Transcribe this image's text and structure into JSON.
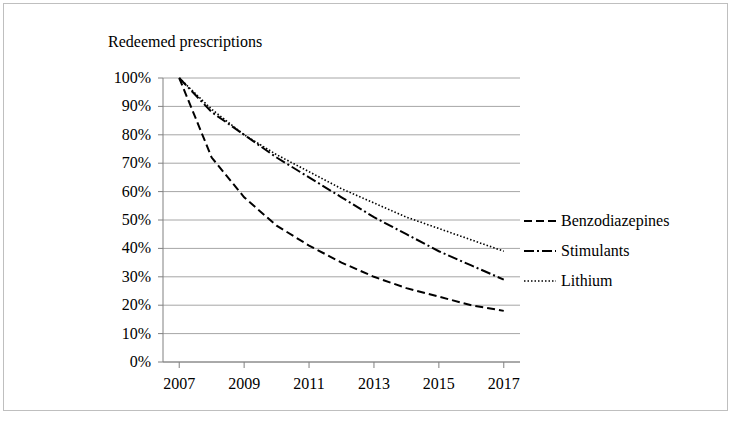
{
  "chart_data": {
    "type": "line",
    "y_label": "Redeemed prescriptions",
    "x": [
      2007,
      2008,
      2009,
      2010,
      2011,
      2012,
      2013,
      2014,
      2015,
      2016,
      2017
    ],
    "series": [
      {
        "name": "Benzodiazepines",
        "color": "#000000",
        "line_style": "dashed",
        "values": [
          100,
          72,
          58,
          48,
          41,
          35,
          30,
          26,
          23,
          20,
          18
        ]
      },
      {
        "name": "Stimulants",
        "color": "#000000",
        "line_style": "dashdot",
        "values": [
          100,
          88,
          80,
          72,
          65,
          58,
          51,
          45,
          39,
          34,
          29
        ]
      },
      {
        "name": "Lithium",
        "color": "#000000",
        "line_style": "dotted",
        "values": [
          100,
          89,
          80,
          73,
          67,
          61,
          56,
          51,
          47,
          43,
          39
        ]
      }
    ],
    "xlim": [
      2006.5,
      2017.5
    ],
    "xticks": [
      2007,
      2009,
      2011,
      2013,
      2015,
      2017
    ],
    "ylim": [
      0,
      100
    ],
    "yticks": [
      {
        "value": 0,
        "label": "0%"
      },
      {
        "value": 10,
        "label": "10%"
      },
      {
        "value": 20,
        "label": "20%"
      },
      {
        "value": 30,
        "label": "30%"
      },
      {
        "value": 40,
        "label": "40%"
      },
      {
        "value": 50,
        "label": "50%"
      },
      {
        "value": 60,
        "label": "60%"
      },
      {
        "value": 70,
        "label": "70%"
      },
      {
        "value": 80,
        "label": "80%"
      },
      {
        "value": 90,
        "label": "90%"
      },
      {
        "value": 100,
        "label": "100%"
      }
    ],
    "grid": true,
    "legend": "right"
  }
}
